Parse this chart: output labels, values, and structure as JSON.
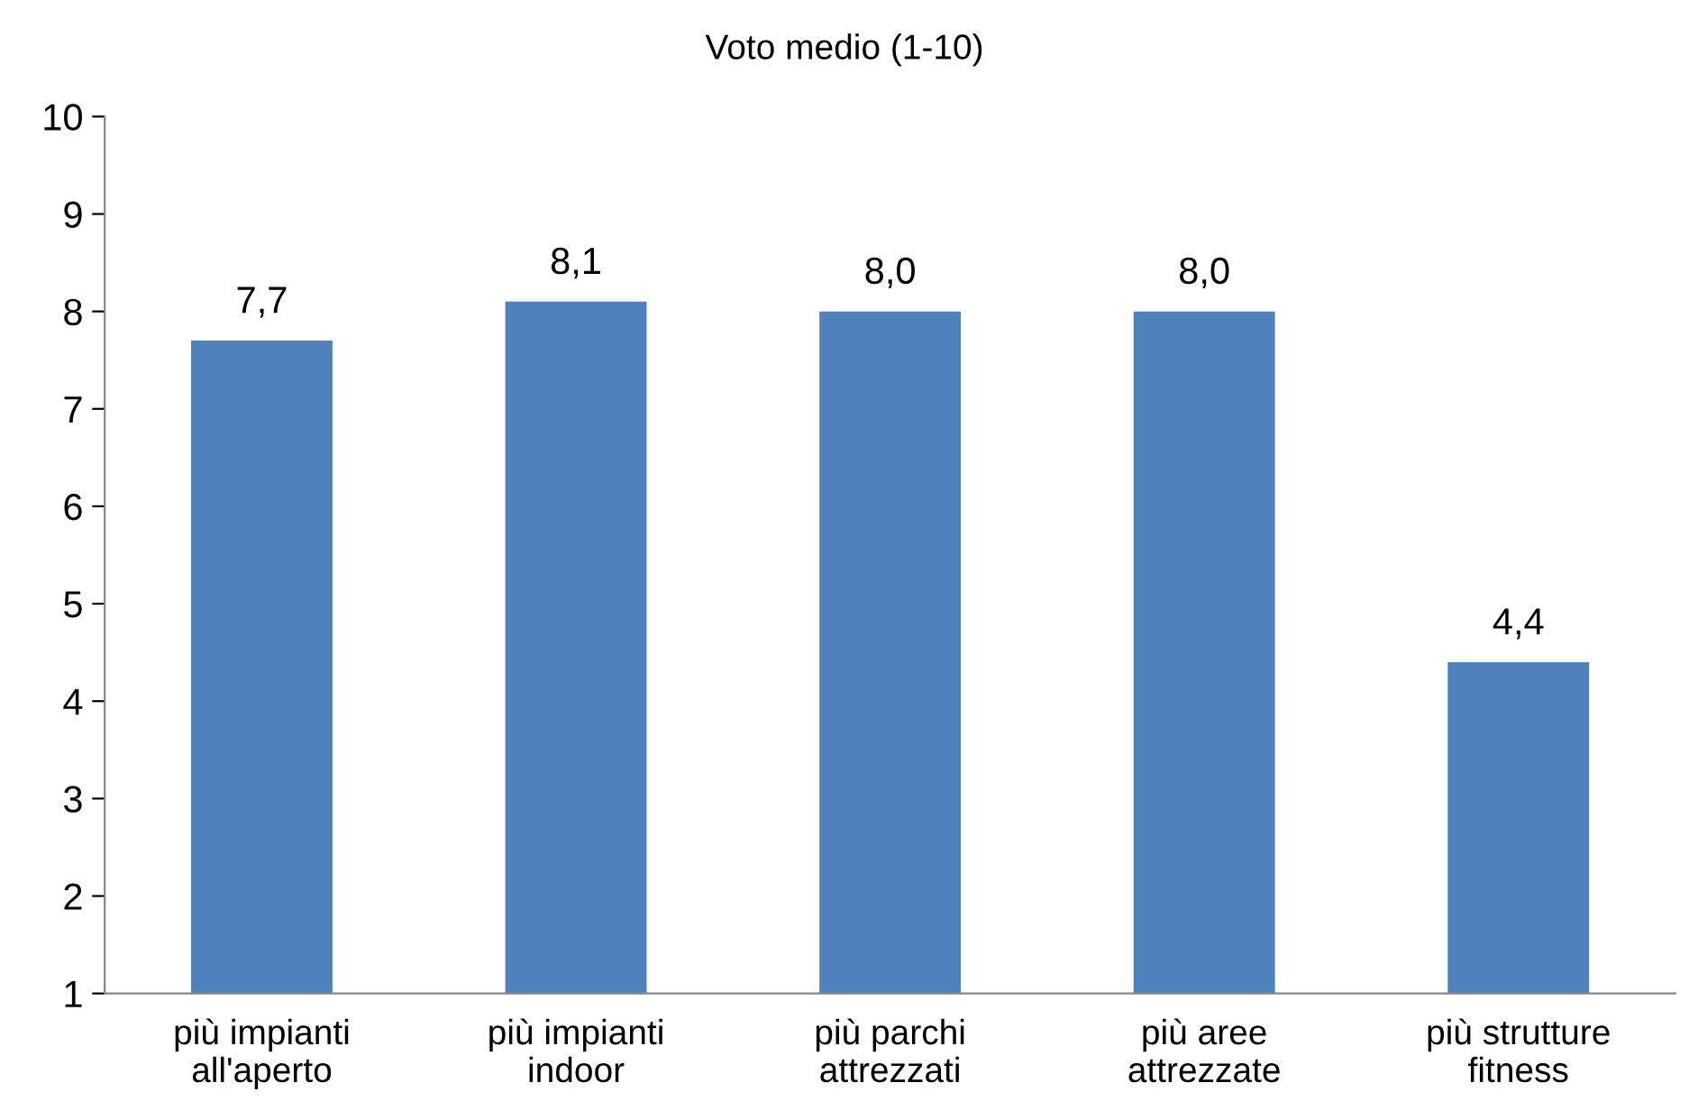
{
  "chart_data": {
    "type": "bar",
    "title": "Voto medio (1-10)",
    "categories": [
      "più impianti\nall'aperto",
      "più impianti\nindoor",
      "più parchi\nattrezzati",
      "più aree\nattrezzate",
      "più strutture\nfitness"
    ],
    "values": [
      7.7,
      8.1,
      8.0,
      8.0,
      4.4
    ],
    "value_labels": [
      "7,7",
      "8,1",
      "8,0",
      "8,0",
      "4,4"
    ],
    "color": "#4f81bd",
    "ylim": [
      1,
      10
    ],
    "yticks": [
      1,
      2,
      3,
      4,
      5,
      6,
      7,
      8,
      9,
      10
    ],
    "grid": false,
    "legend": false
  }
}
